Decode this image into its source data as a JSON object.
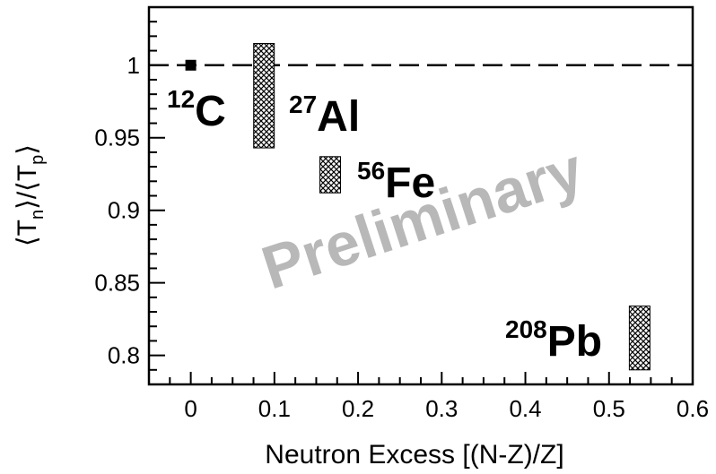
{
  "chart_data": {
    "type": "scatter",
    "xlabel": "Neutron Excess [(N-Z)/Z]",
    "ylabel": {
      "main": "⟨T",
      "sub_n": "n",
      "mid": "⟩/⟨T",
      "sub_p": "p",
      "end": "⟩"
    },
    "xlim": [
      -0.05,
      0.6
    ],
    "ylim": [
      0.78,
      1.04
    ],
    "xticks": [
      0,
      0.1,
      0.2,
      0.3,
      0.4,
      0.5,
      0.6
    ],
    "xtick_labels": [
      "0",
      "0.1",
      "0.2",
      "0.3",
      "0.4",
      "0.5",
      "0.6"
    ],
    "yticks": [
      0.8,
      0.85,
      0.9,
      0.95,
      1
    ],
    "ytick_labels": [
      "0.8",
      "0.85",
      "0.9",
      "0.95",
      "1"
    ],
    "reference_line": {
      "y": 1,
      "style": "dashed"
    },
    "watermark": "Preliminary",
    "points": [
      {
        "nucleus": "C",
        "mass_number": "12",
        "x": 0,
        "y": 1.0,
        "y_low": 0.997,
        "y_high": 1.003,
        "marker": "square"
      },
      {
        "nucleus": "Al",
        "mass_number": "27",
        "x": 0.0875,
        "y": 0.979,
        "y_low": 0.943,
        "y_high": 1.015,
        "marker": "band"
      },
      {
        "nucleus": "Fe",
        "mass_number": "56",
        "x": 0.1667,
        "y": 0.925,
        "y_low": 0.912,
        "y_high": 0.937,
        "marker": "band"
      },
      {
        "nucleus": "Pb",
        "mass_number": "208",
        "x": 0.5366,
        "y": 0.812,
        "y_low": 0.79,
        "y_high": 0.834,
        "marker": "band"
      }
    ]
  }
}
